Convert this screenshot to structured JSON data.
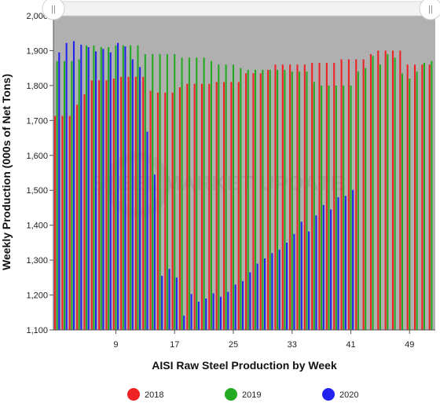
{
  "chart_data": {
    "type": "bar",
    "title": "",
    "xlabel": "AISI Raw Steel Production by Week",
    "ylabel": "Weekly Production (000s of Net Tons)",
    "ylim": [
      1100,
      2000
    ],
    "yticks": [
      1100,
      1200,
      1300,
      1400,
      1500,
      1600,
      1700,
      1800,
      1900,
      2000
    ],
    "ytick_labels": [
      "1,100",
      "1,200",
      "1,300",
      "1,400",
      "1,500",
      "1,600",
      "1,700",
      "1,800",
      "1,900",
      "2,000"
    ],
    "xlim": [
      1,
      52
    ],
    "xticks": [
      9,
      17,
      25,
      33,
      41,
      49
    ],
    "grid": false,
    "legend_position": "bottom",
    "series": [
      {
        "name": "2018",
        "color": "#ee2222",
        "x": [
          1,
          2,
          3,
          4,
          5,
          6,
          7,
          8,
          9,
          10,
          11,
          12,
          13,
          14,
          15,
          16,
          17,
          18,
          19,
          20,
          21,
          22,
          23,
          24,
          25,
          26,
          27,
          28,
          29,
          30,
          31,
          32,
          33,
          34,
          35,
          36,
          37,
          38,
          39,
          40,
          41,
          42,
          43,
          44,
          45,
          46,
          47,
          48,
          49,
          50,
          51,
          52
        ],
        "values": [
          1713,
          1713,
          1713,
          1745,
          1775,
          1815,
          1815,
          1815,
          1820,
          1825,
          1825,
          1825,
          1825,
          1785,
          1780,
          1780,
          1780,
          1795,
          1805,
          1805,
          1805,
          1805,
          1810,
          1810,
          1810,
          1810,
          1835,
          1835,
          1835,
          1845,
          1860,
          1860,
          1860,
          1860,
          1860,
          1865,
          1865,
          1865,
          1865,
          1875,
          1875,
          1875,
          1875,
          1890,
          1900,
          1900,
          1900,
          1900,
          1860,
          1860,
          1860,
          1860
        ]
      },
      {
        "name": "2019",
        "color": "#22aa22",
        "x": [
          1,
          2,
          3,
          4,
          5,
          6,
          7,
          8,
          9,
          10,
          11,
          12,
          13,
          14,
          15,
          16,
          17,
          18,
          19,
          20,
          21,
          22,
          23,
          24,
          25,
          26,
          27,
          28,
          29,
          30,
          31,
          32,
          33,
          34,
          35,
          36,
          37,
          38,
          39,
          40,
          41,
          42,
          43,
          44,
          45,
          46,
          47,
          48,
          49,
          50,
          51,
          52
        ],
        "values": [
          1870,
          1870,
          1870,
          1875,
          1915,
          1915,
          1910,
          1910,
          1915,
          1915,
          1915,
          1915,
          1890,
          1890,
          1890,
          1890,
          1890,
          1880,
          1880,
          1880,
          1880,
          1870,
          1860,
          1860,
          1860,
          1850,
          1845,
          1845,
          1845,
          1845,
          1845,
          1845,
          1840,
          1840,
          1840,
          1810,
          1800,
          1800,
          1800,
          1800,
          1800,
          1840,
          1850,
          1885,
          1860,
          1890,
          1880,
          1835,
          1820,
          1840,
          1865,
          1870
        ]
      },
      {
        "name": "2020",
        "color": "#2222ee",
        "x": [
          1,
          2,
          3,
          4,
          5,
          6,
          7,
          8,
          9,
          10,
          11,
          12,
          13,
          14,
          15,
          16,
          17,
          18,
          19,
          20,
          21,
          22,
          23,
          24,
          25,
          26,
          27,
          28,
          29,
          30,
          31,
          32,
          33,
          34,
          35,
          36,
          37,
          38,
          39,
          40,
          41
        ],
        "values": [
          1895,
          1922,
          1927,
          1917,
          1910,
          1898,
          1905,
          1895,
          1922,
          1912,
          1875,
          1853,
          1668,
          1545,
          1255,
          1275,
          1250,
          1141,
          1203,
          1181,
          1190,
          1205,
          1195,
          1209,
          1230,
          1240,
          1265,
          1290,
          1305,
          1320,
          1330,
          1350,
          1375,
          1410,
          1382,
          1428,
          1458,
          1445,
          1480,
          1484,
          1501
        ]
      }
    ]
  },
  "watermark": "STEEL MARKET UPDATE",
  "scrollbar": {
    "left_handle": "||",
    "right_handle": "||"
  }
}
